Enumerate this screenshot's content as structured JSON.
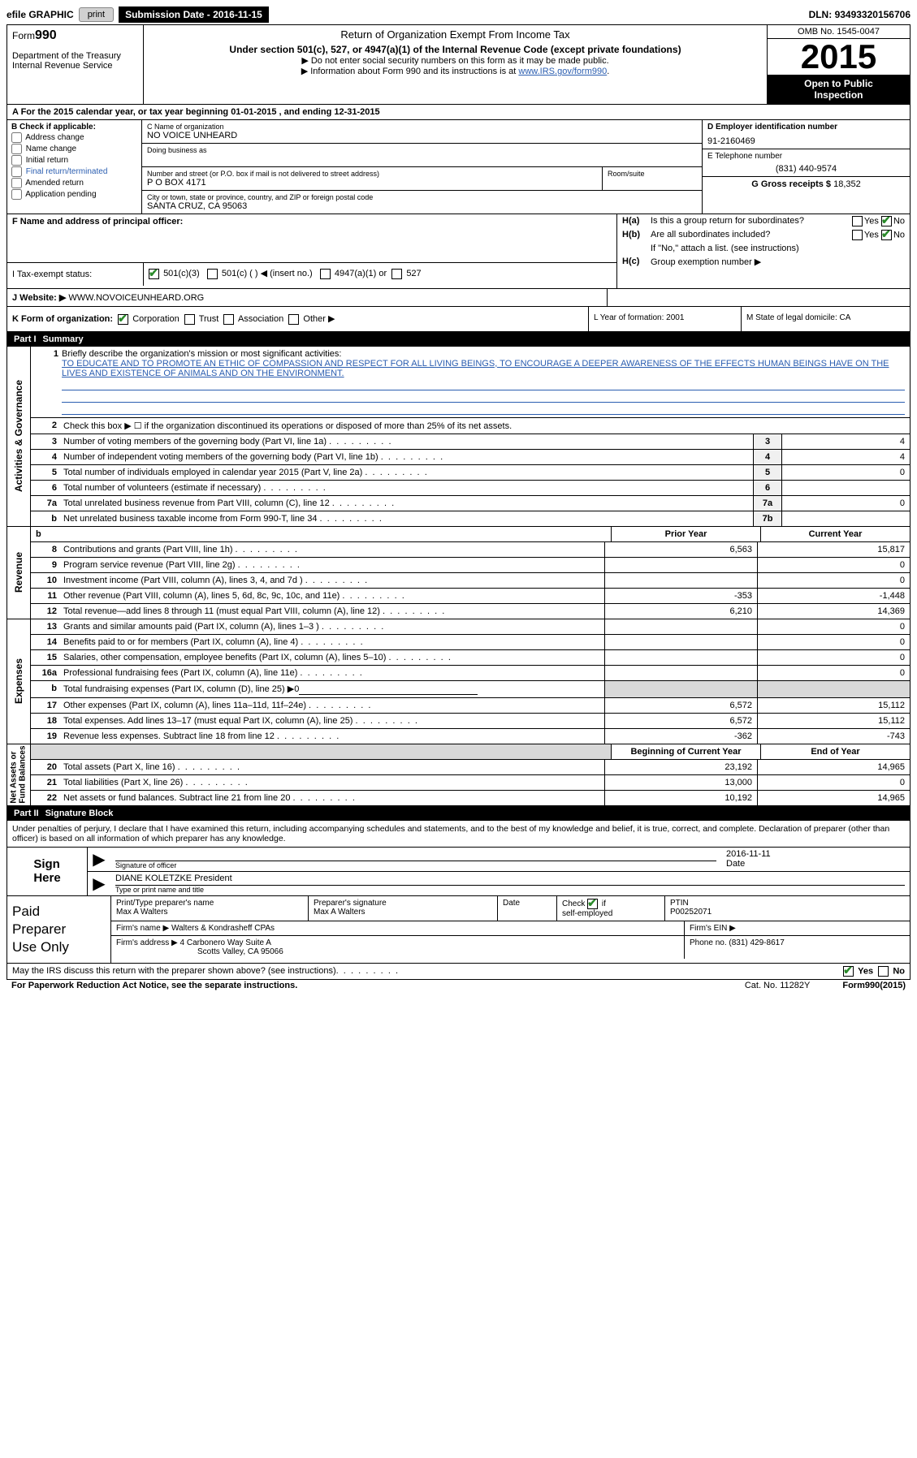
{
  "topbar": {
    "efile_label": "efile GRAPHIC",
    "print_btn": "print",
    "sub_date_label": "Submission Date - ",
    "sub_date": "2016-11-15",
    "dln_label": "DLN: ",
    "dln": "93493320156706"
  },
  "header": {
    "form_label": "Form",
    "form_no": "990",
    "dept": "Department of the Treasury\nInternal Revenue Service",
    "title": "Return of Organization Exempt From Income Tax",
    "subtitle": "Under section 501(c), 527, or 4947(a)(1) of the Internal Revenue Code (except private foundations)",
    "note1": "Do not enter social security numbers on this form as it may be made public.",
    "note2_pre": "Information about Form 990 and its instructions is at ",
    "note2_link": "www.IRS.gov/form990",
    "omb": "OMB No. 1545-0047",
    "year": "2015",
    "open": "Open to Public Inspection"
  },
  "rowA": "A  For the 2015 calendar year, or tax year beginning 01-01-2015   , and ending 12-31-2015",
  "colB": {
    "label": "B Check if applicable:",
    "items": [
      "Address change",
      "Name change",
      "Initial return",
      "Final return/terminated",
      "Amended return",
      "Application pending"
    ]
  },
  "colC": {
    "name_label": "C Name of organization",
    "name": "NO VOICE UNHEARD",
    "dba_label": "Doing business as",
    "addr_label": "Number and street (or P.O. box if mail is not delivered to street address)",
    "room_label": "Room/suite",
    "addr": "P O BOX 4171",
    "city_label": "City or town, state or province, country, and ZIP or foreign postal code",
    "city": "SANTA CRUZ, CA  95063"
  },
  "colD": {
    "ein_label": "D Employer identification number",
    "ein": "91-2160469",
    "tel_label": "E Telephone number",
    "tel": "(831) 440-9574",
    "gross_label": "G Gross receipts $ ",
    "gross": "18,352"
  },
  "colF": {
    "label": "F  Name and address of principal officer:"
  },
  "colH": {
    "a_label": "H(a)",
    "a_txt": "Is this a group return for subordinates?",
    "b_label": "H(b)",
    "b_txt": "Are all subordinates included?",
    "b_note": "If \"No,\" attach a list. (see instructions)",
    "c_label": "H(c)",
    "c_txt": "Group exemption number ▶",
    "yes": "Yes",
    "no": "No"
  },
  "tes": {
    "label": "I    Tax-exempt status:",
    "o1": "501(c)(3)",
    "o2": "501(c) (  ) ◀ (insert no.)",
    "o3": "4947(a)(1) or",
    "o4": "527"
  },
  "web": {
    "label": "J    Website: ▶  ",
    "value": "WWW.NOVOICEUNHEARD.ORG"
  },
  "klm": {
    "k": "K Form of organization:",
    "k_opts": [
      "Corporation",
      "Trust",
      "Association",
      "Other ▶"
    ],
    "l": "L Year of formation: 2001",
    "m": "M State of legal domicile: CA"
  },
  "part1": {
    "num": "Part I",
    "title": "Summary"
  },
  "mission": {
    "num": "1",
    "label": "Briefly describe the organization's mission or most significant activities:",
    "text": "TO EDUCATE AND TO PROMOTE AN ETHIC OF COMPASSION AND RESPECT FOR ALL LIVING BEINGS, TO ENCOURAGE A DEEPER AWARENESS OF THE EFFECTS HUMAN BEINGS HAVE ON THE LIVES AND EXISTENCE OF ANIMALS AND ON THE ENVIRONMENT."
  },
  "gov_rows": [
    {
      "n": "2",
      "d": "Check this box ▶ ☐  if the organization discontinued its operations or disposed of more than 25% of its net assets."
    },
    {
      "n": "3",
      "d": "Number of voting members of the governing body (Part VI, line 1a)",
      "box": "3",
      "v": "4"
    },
    {
      "n": "4",
      "d": "Number of independent voting members of the governing body (Part VI, line 1b)",
      "box": "4",
      "v": "4"
    },
    {
      "n": "5",
      "d": "Total number of individuals employed in calendar year 2015 (Part V, line 2a)",
      "box": "5",
      "v": "0"
    },
    {
      "n": "6",
      "d": "Total number of volunteers (estimate if necessary)",
      "box": "6",
      "v": ""
    },
    {
      "n": "7a",
      "d": "Total unrelated business revenue from Part VIII, column (C), line 12",
      "box": "7a",
      "v": "0"
    },
    {
      "n": "b",
      "d": "Net unrelated business taxable income from Form 990-T, line 34",
      "box": "7b",
      "v": "",
      "last": true
    }
  ],
  "rev_hdr": {
    "c1": "Prior Year",
    "c2": "Current Year"
  },
  "rev_rows": [
    {
      "n": "8",
      "d": "Contributions and grants (Part VIII, line 1h)",
      "v1": "6,563",
      "v2": "15,817"
    },
    {
      "n": "9",
      "d": "Program service revenue (Part VIII, line 2g)",
      "v1": "",
      "v2": "0"
    },
    {
      "n": "10",
      "d": "Investment income (Part VIII, column (A), lines 3, 4, and 7d )",
      "v1": "",
      "v2": "0"
    },
    {
      "n": "11",
      "d": "Other revenue (Part VIII, column (A), lines 5, 6d, 8c, 9c, 10c, and 11e)",
      "v1": "-353",
      "v2": "-1,448"
    },
    {
      "n": "12",
      "d": "Total revenue—add lines 8 through 11 (must equal Part VIII, column (A), line 12)",
      "v1": "6,210",
      "v2": "14,369"
    }
  ],
  "exp_rows": [
    {
      "n": "13",
      "d": "Grants and similar amounts paid (Part IX, column (A), lines 1–3 )",
      "v1": "",
      "v2": "0"
    },
    {
      "n": "14",
      "d": "Benefits paid to or for members (Part IX, column (A), line 4)",
      "v1": "",
      "v2": "0"
    },
    {
      "n": "15",
      "d": "Salaries, other compensation, employee benefits (Part IX, column (A), lines 5–10)",
      "v1": "",
      "v2": "0"
    },
    {
      "n": "16a",
      "d": "Professional fundraising fees (Part IX, column (A), line 11e)",
      "v1": "",
      "v2": "0"
    },
    {
      "n": "b",
      "d": "Total fundraising expenses (Part IX, column (D), line 25) ▶0",
      "shaded": true
    },
    {
      "n": "17",
      "d": "Other expenses (Part IX, column (A), lines 11a–11d, 11f–24e)",
      "v1": "6,572",
      "v2": "15,112"
    },
    {
      "n": "18",
      "d": "Total expenses. Add lines 13–17 (must equal Part IX, column (A), line 25)",
      "v1": "6,572",
      "v2": "15,112"
    },
    {
      "n": "19",
      "d": "Revenue less expenses. Subtract line 18 from line 12",
      "v1": "-362",
      "v2": "-743"
    }
  ],
  "na_hdr": {
    "c1": "Beginning of Current Year",
    "c2": "End of Year"
  },
  "na_rows": [
    {
      "n": "20",
      "d": "Total assets (Part X, line 16)",
      "v1": "23,192",
      "v2": "14,965"
    },
    {
      "n": "21",
      "d": "Total liabilities (Part X, line 26)",
      "v1": "13,000",
      "v2": "0"
    },
    {
      "n": "22",
      "d": "Net assets or fund balances. Subtract line 21 from line 20",
      "v1": "10,192",
      "v2": "14,965"
    }
  ],
  "part2": {
    "num": "Part II",
    "title": "Signature Block"
  },
  "sig_intro": "Under penalties of perjury, I declare that I have examined this return, including accompanying schedules and statements, and to the best of my knowledge and belief, it is true, correct, and complete. Declaration of preparer (other than officer) is based on all information of which preparer has any knowledge.",
  "sign": {
    "side": "Sign Here",
    "sig_label": "Signature of officer",
    "date_label": "Date",
    "date": "2016-11-11",
    "name": "DIANE KOLETZKE  President",
    "name_label": "Type or print name and title"
  },
  "prep": {
    "side": "Paid Preparer Use Only",
    "r1": {
      "c1_label": "Print/Type preparer's name",
      "c1": "Max A Walters",
      "c2_label": "Preparer's signature",
      "c2": "Max A Walters",
      "c3_label": "Date",
      "c3": "",
      "c4_label": "Check ☑ if self-employed",
      "c5_label": "PTIN",
      "c5": "P00252071"
    },
    "r2": {
      "label": "Firm's name    ▶",
      "val": "Walters & Kondrasheff CPAs",
      "ein_label": "Firm's EIN ▶",
      "ein": ""
    },
    "r3": {
      "label": "Firm's address ▶",
      "val": "4 Carbonero Way Suite A",
      "phone_label": "Phone no. ",
      "phone": "(831) 429-8617"
    },
    "r3b": "Scotts Valley, CA  95066"
  },
  "footer": {
    "discuss": "May the IRS discuss this return with the preparer shown above? (see instructions)",
    "yes": "Yes",
    "no": "No",
    "paperwork": "For Paperwork Reduction Act Notice, see the separate instructions.",
    "cat": "Cat. No. 11282Y",
    "formno": "Form990(2015)"
  },
  "side_labels": {
    "gov": "Activities & Governance",
    "rev": "Revenue",
    "exp": "Expenses",
    "na": "Net Assets or Fund Balances"
  }
}
